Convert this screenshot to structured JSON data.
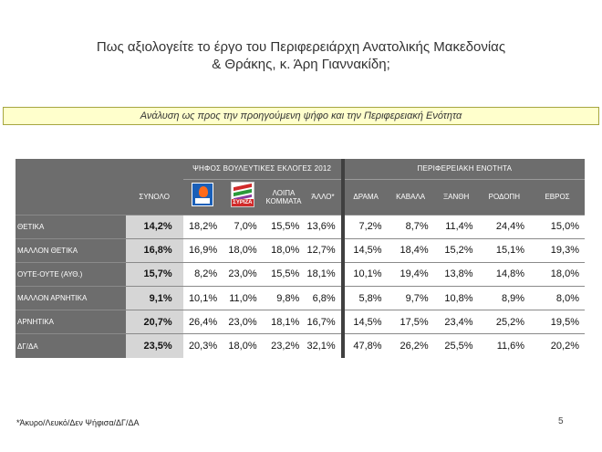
{
  "title_line1": "Πως αξιολογείτε το έργο του Περιφερειάρχη Ανατολικής Μακεδονίας",
  "title_line2": "& Θράκης, κ. Άρη Γιαννακίδη;",
  "subtitle": "Ανάλυση ως προς την προηγούμενη ψήφο και την Περιφερειακή Ενότητα",
  "table": {
    "group_vote": "ΨΗΦΟΣ ΒΟΥΛΕΥΤΙΚΕΣ ΕΚΛΟΓΕΣ 2012",
    "group_region": "ΠΕΡΙΦΕΡΕΙΑΚΗ ΕΝΟΤΗΤΑ",
    "col_total": "ΣΥΝΟΛΟ",
    "col_nd_logo": "nd-logo",
    "col_syriza_logo": "syriza-logo",
    "syriza_logo_text": "ΣΥΡΙΖΑ",
    "col_other_parties": "ΛΟΙΠΑ ΚΟΜΜΑΤΑ",
    "col_other": "ΆΛΛΟ*",
    "regions": [
      "ΔΡΑΜΑ",
      "ΚΑΒΑΛΑ",
      "ΞΑΝΘΗ",
      "ΡΟΔΟΠΗ",
      "ΕΒΡΟΣ"
    ],
    "rows": [
      {
        "label": "ΘΕΤΙΚΑ",
        "total": "14,2%",
        "vote": [
          "18,2%",
          "7,0%",
          "15,5%",
          "13,6%"
        ],
        "region": [
          "7,2%",
          "8,7%",
          "11,4%",
          "24,4%",
          "15,0%"
        ]
      },
      {
        "label": "ΜΑΛΛΟΝ ΘΕΤΙΚΑ",
        "total": "16,8%",
        "vote": [
          "16,9%",
          "18,0%",
          "18,0%",
          "12,7%"
        ],
        "region": [
          "14,5%",
          "18,4%",
          "15,2%",
          "15,1%",
          "19,3%"
        ]
      },
      {
        "label": "ΟΥΤΕ-ΟΥΤΕ (ΑΥΘ.)",
        "total": "15,7%",
        "vote": [
          "8,2%",
          "23,0%",
          "15,5%",
          "18,1%"
        ],
        "region": [
          "10,1%",
          "19,4%",
          "13,8%",
          "14,8%",
          "18,0%"
        ]
      },
      {
        "label": "ΜΑΛΛΟΝ ΑΡΝΗΤΙΚΑ",
        "total": "9,1%",
        "vote": [
          "10,1%",
          "11,0%",
          "9,8%",
          "6,8%"
        ],
        "region": [
          "5,8%",
          "9,7%",
          "10,8%",
          "8,9%",
          "8,0%"
        ]
      },
      {
        "label": "ΑΡΝΗΤΙΚΑ",
        "total": "20,7%",
        "vote": [
          "26,4%",
          "23,0%",
          "18,1%",
          "16,7%"
        ],
        "region": [
          "14,5%",
          "17,5%",
          "23,4%",
          "25,2%",
          "19,5%"
        ]
      },
      {
        "label": "ΔΓ/ΔΑ",
        "total": "23,5%",
        "vote": [
          "20,3%",
          "18,0%",
          "23,2%",
          "32,1%"
        ],
        "region": [
          "47,8%",
          "26,2%",
          "25,5%",
          "11,6%",
          "20,2%"
        ]
      }
    ]
  },
  "footnote": "*Άκυρο/Λευκό/Δεν Ψήφισα/ΔΓ/ΔΑ",
  "page_number": "5",
  "colors": {
    "table_bg": "#6d6d6d",
    "subtitle_bg": "#ffffcc",
    "total_cell_bg": "#d6d6d6"
  }
}
